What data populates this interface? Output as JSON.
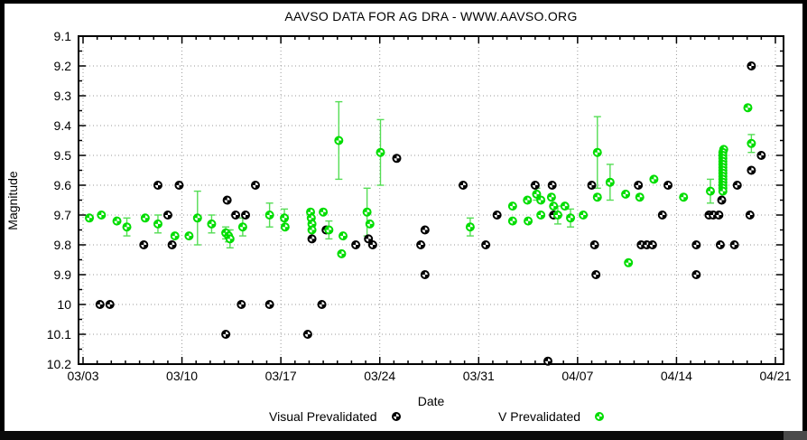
{
  "chart_data": {
    "type": "scatter",
    "title": "AAVSO DATA FOR AG DRA - WWW.AAVSO.ORG",
    "xlabel": "Date",
    "ylabel": "Magnitude",
    "grid": "dotted",
    "background": "#ffffff",
    "x_axis": {
      "tick_labels": [
        "03/03",
        "03/10",
        "03/17",
        "03/24",
        "03/31",
        "04/07",
        "04/14",
        "04/21"
      ],
      "major_tick_interval_days": 7,
      "minor_tick_interval_days": 1,
      "span_days": 49
    },
    "y_axis": {
      "tick_labels": [
        "9.1",
        "9.2",
        "9.3",
        "9.4",
        "9.5",
        "9.6",
        "9.7",
        "9.8",
        "9.9",
        "10",
        "10.1",
        "10.2"
      ],
      "range": [
        9.1,
        10.2
      ],
      "minor_tick_interval": 0.05,
      "direction": "inverted-magnitude-downward"
    },
    "legend": {
      "position": "bottom",
      "entries": [
        {
          "label": "Visual Prevalidated",
          "color": "#000000"
        },
        {
          "label": "V Prevalidated",
          "color": "#00dd00"
        }
      ]
    },
    "series": [
      {
        "name": "Visual Prevalidated",
        "color": "#000000",
        "marker": "pinwheel-circle",
        "points_format": [
          "days_after_03_03",
          "magnitude"
        ],
        "points": [
          [
            1.2,
            10.0
          ],
          [
            1.9,
            10.0
          ],
          [
            4.3,
            9.8
          ],
          [
            5.3,
            9.6
          ],
          [
            6.0,
            9.7
          ],
          [
            6.3,
            9.8
          ],
          [
            6.8,
            9.6
          ],
          [
            10.1,
            10.1
          ],
          [
            10.2,
            9.65
          ],
          [
            10.8,
            9.7
          ],
          [
            11.2,
            10.0
          ],
          [
            11.5,
            9.7
          ],
          [
            12.2,
            9.6
          ],
          [
            13.2,
            10.0
          ],
          [
            15.9,
            10.1
          ],
          [
            16.2,
            9.78
          ],
          [
            16.9,
            10.0
          ],
          [
            17.2,
            9.75
          ],
          [
            19.3,
            9.8
          ],
          [
            20.2,
            9.78
          ],
          [
            20.5,
            9.8
          ],
          [
            22.2,
            9.51
          ],
          [
            23.9,
            9.8
          ],
          [
            24.2,
            9.75
          ],
          [
            24.2,
            9.9
          ],
          [
            26.9,
            9.6
          ],
          [
            28.5,
            9.8
          ],
          [
            29.3,
            9.7
          ],
          [
            32.0,
            9.6
          ],
          [
            32.9,
            10.19
          ],
          [
            33.2,
            9.6
          ],
          [
            33.3,
            9.7
          ],
          [
            36.0,
            9.6
          ],
          [
            36.2,
            9.8
          ],
          [
            36.3,
            9.9
          ],
          [
            39.3,
            9.6
          ],
          [
            39.5,
            9.8
          ],
          [
            39.9,
            9.8
          ],
          [
            40.3,
            9.8
          ],
          [
            41.0,
            9.7
          ],
          [
            41.4,
            9.6
          ],
          [
            43.4,
            9.9
          ],
          [
            43.4,
            9.8
          ],
          [
            44.3,
            9.7
          ],
          [
            44.6,
            9.7
          ],
          [
            45.0,
            9.7
          ],
          [
            45.1,
            9.8
          ],
          [
            45.2,
            9.65
          ],
          [
            46.1,
            9.8
          ],
          [
            46.3,
            9.6
          ],
          [
            47.3,
            9.2
          ],
          [
            47.3,
            9.55
          ],
          [
            47.2,
            9.7
          ],
          [
            48.0,
            9.5
          ]
        ]
      },
      {
        "name": "V Prevalidated",
        "color": "#00dd00",
        "marker": "pinwheel-circle",
        "error_bar_color": "#55dd55",
        "points_format": [
          "days_after_03_03",
          "magnitude",
          "error_optional"
        ],
        "points": [
          [
            0.45,
            9.71
          ],
          [
            1.3,
            9.7
          ],
          [
            2.4,
            9.72
          ],
          [
            3.1,
            9.74,
            0.03
          ],
          [
            4.4,
            9.71
          ],
          [
            5.3,
            9.73,
            0.03
          ],
          [
            6.5,
            9.77
          ],
          [
            7.5,
            9.77
          ],
          [
            8.1,
            9.71,
            0.09
          ],
          [
            9.1,
            9.73,
            0.03
          ],
          [
            10.1,
            9.76,
            0.02
          ],
          [
            10.3,
            9.77,
            0.02
          ],
          [
            10.4,
            9.78,
            0.03
          ],
          [
            11.3,
            9.74,
            0.03
          ],
          [
            13.2,
            9.7,
            0.04
          ],
          [
            14.25,
            9.71,
            0.03
          ],
          [
            14.3,
            9.74
          ],
          [
            16.1,
            9.69
          ],
          [
            16.15,
            9.71
          ],
          [
            16.2,
            9.73
          ],
          [
            16.2,
            9.75
          ],
          [
            17.0,
            9.69
          ],
          [
            17.4,
            9.75,
            0.03
          ],
          [
            18.1,
            9.45,
            0.13
          ],
          [
            18.4,
            9.77
          ],
          [
            18.3,
            9.83
          ],
          [
            20.1,
            9.69,
            0.08
          ],
          [
            20.3,
            9.73
          ],
          [
            21.05,
            9.49,
            0.11
          ],
          [
            27.4,
            9.74,
            0.03
          ],
          [
            30.4,
            9.67
          ],
          [
            30.4,
            9.72
          ],
          [
            31.45,
            9.65
          ],
          [
            31.5,
            9.72
          ],
          [
            32.1,
            9.63,
            0.02
          ],
          [
            32.4,
            9.65
          ],
          [
            32.4,
            9.7
          ],
          [
            33.15,
            9.64
          ],
          [
            33.3,
            9.67
          ],
          [
            33.6,
            9.7,
            0.03
          ],
          [
            34.1,
            9.67
          ],
          [
            34.5,
            9.71,
            0.03
          ],
          [
            35.4,
            9.7
          ],
          [
            36.4,
            9.49,
            0.12
          ],
          [
            36.4,
            9.64
          ],
          [
            37.3,
            9.59,
            0.06
          ],
          [
            38.4,
            9.63
          ],
          [
            38.6,
            9.86
          ],
          [
            39.4,
            9.64
          ],
          [
            40.4,
            9.58
          ],
          [
            42.5,
            9.64
          ],
          [
            44.4,
            9.62,
            0.04
          ],
          [
            45.34,
            9.48
          ],
          [
            45.28,
            9.49
          ],
          [
            45.28,
            9.5
          ],
          [
            45.28,
            9.51
          ],
          [
            45.28,
            9.52
          ],
          [
            45.28,
            9.53
          ],
          [
            45.28,
            9.54
          ],
          [
            45.28,
            9.55
          ],
          [
            45.28,
            9.56
          ],
          [
            45.28,
            9.57
          ],
          [
            45.28,
            9.58
          ],
          [
            45.28,
            9.59
          ],
          [
            45.28,
            9.6
          ],
          [
            45.28,
            9.61
          ],
          [
            45.28,
            9.62
          ],
          [
            47.05,
            9.34
          ],
          [
            47.3,
            9.46,
            0.03
          ]
        ]
      }
    ]
  }
}
